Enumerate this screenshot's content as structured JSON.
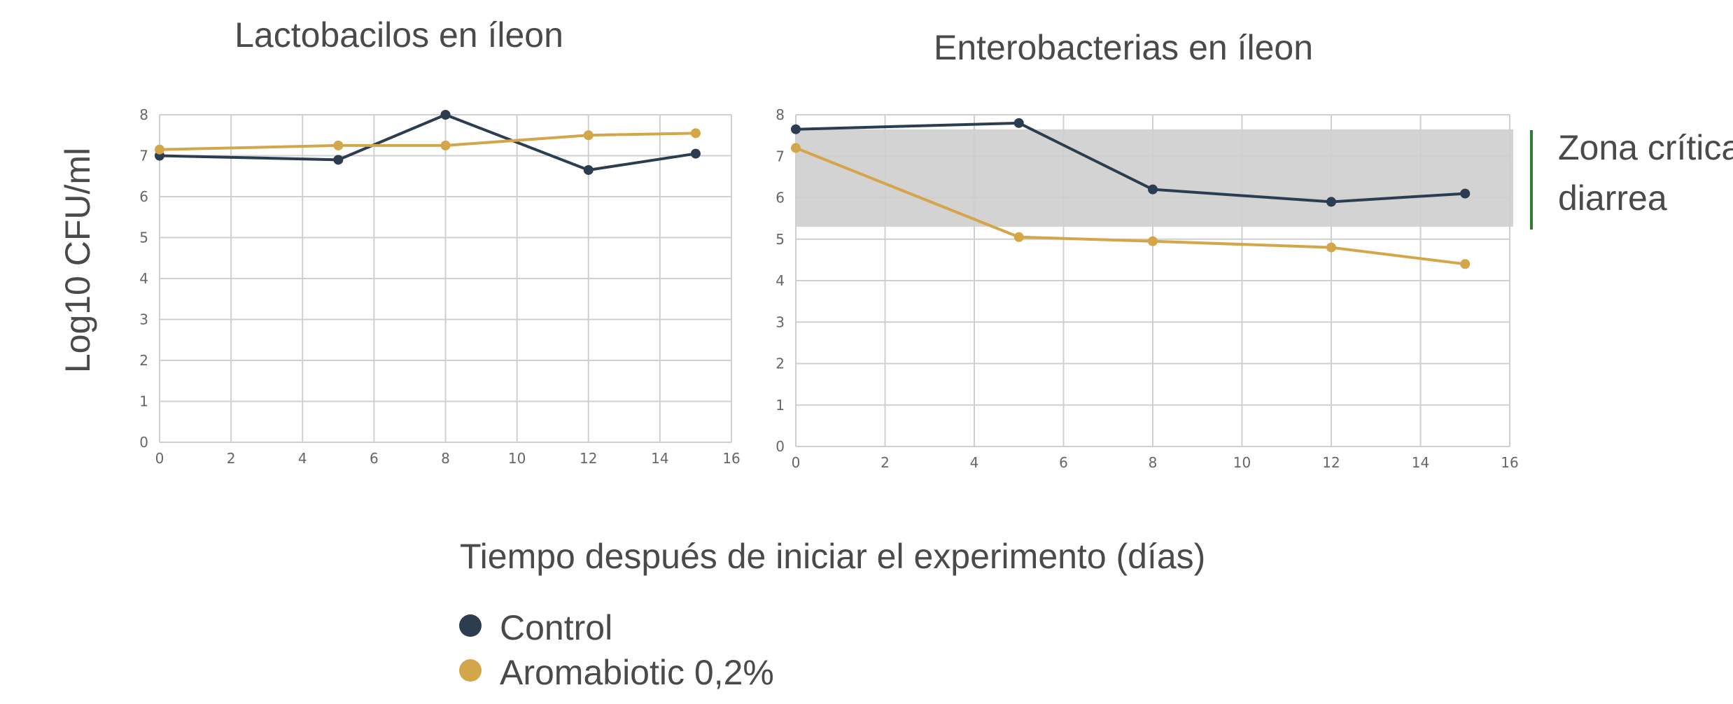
{
  "colors": {
    "control": "#2c3d4f",
    "aromabiotic": "#d4a64a",
    "grid": "#cfcfcf",
    "zone_fill": "#d3d3d3",
    "zone_bracket": "#2e7d32"
  },
  "ylabel": "Log10 CFU/ml",
  "xlabel": "Tiempo después de iniciar el experimento (días)",
  "legend": {
    "items": [
      {
        "label": "Control",
        "color": "#2c3d4f",
        "icon": "circle-marker-icon"
      },
      {
        "label": "Aromabiotic 0,2%",
        "color": "#d4a64a",
        "icon": "circle-marker-icon"
      }
    ]
  },
  "zone_label": {
    "line1": "Zona crítica",
    "line2": "diarrea"
  },
  "chart_data": [
    {
      "type": "line",
      "title": "Lactobacilos en íleon",
      "xlim": [
        0,
        16
      ],
      "ylim": [
        0,
        8
      ],
      "xticks": [
        0,
        2,
        4,
        6,
        8,
        10,
        12,
        14,
        16
      ],
      "yticks": [
        0,
        1,
        2,
        3,
        4,
        5,
        6,
        7,
        8
      ],
      "grid": true,
      "series": [
        {
          "name": "Control",
          "x": [
            0,
            5,
            8,
            12,
            15
          ],
          "y": [
            7.0,
            6.9,
            8.0,
            6.65,
            7.05
          ]
        },
        {
          "name": "Aromabiotic 0,2%",
          "x": [
            0,
            5,
            8,
            12,
            15
          ],
          "y": [
            7.15,
            7.25,
            7.25,
            7.5,
            7.55
          ]
        }
      ]
    },
    {
      "type": "line",
      "title": "Enterobacterias en íleon",
      "xlim": [
        0,
        16
      ],
      "ylim": [
        0,
        8
      ],
      "xticks": [
        0,
        2,
        4,
        6,
        8,
        10,
        12,
        14,
        16
      ],
      "yticks": [
        0,
        1,
        2,
        3,
        4,
        5,
        6,
        7,
        8
      ],
      "grid": true,
      "shaded_band": {
        "y0": 5.3,
        "y1": 7.65
      },
      "series": [
        {
          "name": "Control",
          "x": [
            0,
            5,
            8,
            12,
            15
          ],
          "y": [
            7.65,
            7.8,
            6.2,
            5.9,
            6.1
          ]
        },
        {
          "name": "Aromabiotic 0,2%",
          "x": [
            0,
            5,
            8,
            12,
            15
          ],
          "y": [
            7.2,
            5.05,
            4.95,
            4.8,
            4.4
          ]
        }
      ]
    }
  ]
}
